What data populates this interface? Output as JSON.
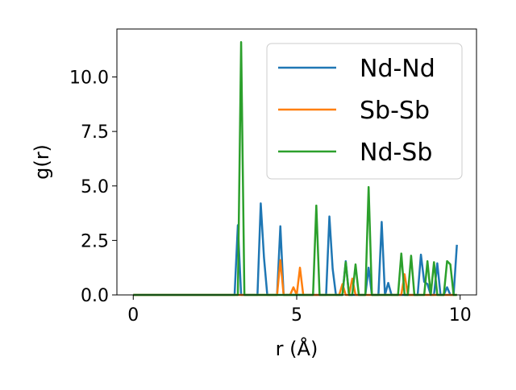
{
  "chart_data": {
    "type": "line",
    "xlabel": "r (Å)",
    "ylabel": "g(r)",
    "xlim": [
      -0.5,
      10.5
    ],
    "ylim": [
      0,
      12.2
    ],
    "xticks": [
      0,
      5,
      10
    ],
    "xtick_labels": [
      "0",
      "5",
      "10"
    ],
    "yticks": [
      0,
      2.5,
      5,
      7.5,
      10
    ],
    "ytick_labels": [
      "0.0",
      "2.5",
      "5.0",
      "7.5",
      "10.0"
    ],
    "grid": false,
    "legend_position": "top-right",
    "x": [
      0.0,
      0.1,
      0.2,
      0.3,
      0.4,
      0.5,
      0.6,
      0.7,
      0.8,
      0.9,
      1.0,
      1.1,
      1.2,
      1.3,
      1.4,
      1.5,
      1.6,
      1.7,
      1.8,
      1.9,
      2.0,
      2.1,
      2.2,
      2.3,
      2.4,
      2.5,
      2.6,
      2.7,
      2.8,
      2.9,
      3.0,
      3.1,
      3.2,
      3.3,
      3.4,
      3.5,
      3.6,
      3.7,
      3.8,
      3.9,
      4.0,
      4.1,
      4.2,
      4.3,
      4.4,
      4.5,
      4.6,
      4.7,
      4.8,
      4.9,
      5.0,
      5.1,
      5.2,
      5.3,
      5.4,
      5.5,
      5.6,
      5.7,
      5.8,
      5.9,
      6.0,
      6.1,
      6.2,
      6.3,
      6.4,
      6.5,
      6.6,
      6.7,
      6.8,
      6.9,
      7.0,
      7.1,
      7.2,
      7.3,
      7.4,
      7.5,
      7.6,
      7.7,
      7.8,
      7.9,
      8.0,
      8.1,
      8.2,
      8.3,
      8.4,
      8.5,
      8.6,
      8.7,
      8.8,
      8.9,
      9.0,
      9.1,
      9.2,
      9.3,
      9.4,
      9.5,
      9.6,
      9.7,
      9.8,
      9.9
    ],
    "series": [
      {
        "name": "Nd-Nd",
        "color": "#1f77b4",
        "values": [
          0,
          0,
          0,
          0,
          0,
          0,
          0,
          0,
          0,
          0,
          0,
          0,
          0,
          0,
          0,
          0,
          0,
          0,
          0,
          0,
          0,
          0,
          0,
          0,
          0,
          0,
          0,
          0,
          0,
          0,
          0,
          0,
          3.2,
          0,
          0,
          0,
          0,
          0,
          0,
          4.2,
          1.7,
          0,
          0,
          0,
          0,
          3.15,
          0,
          0,
          0,
          0,
          0,
          0,
          0,
          0,
          0,
          0,
          0,
          0,
          0,
          0,
          3.6,
          1.2,
          0,
          0,
          0,
          1.55,
          0,
          0,
          0,
          0,
          0,
          0,
          1.25,
          0,
          0,
          0,
          3.35,
          0,
          0.55,
          0,
          0,
          0,
          0,
          0,
          0,
          0,
          0,
          0,
          1.85,
          0.6,
          0.5,
          0,
          0,
          1.45,
          0,
          0,
          0.35,
          0,
          0,
          2.3
        ]
      },
      {
        "name": "Sb-Sb",
        "color": "#ff7f0e",
        "values": [
          0,
          0,
          0,
          0,
          0,
          0,
          0,
          0,
          0,
          0,
          0,
          0,
          0,
          0,
          0,
          0,
          0,
          0,
          0,
          0,
          0,
          0,
          0,
          0,
          0,
          0,
          0,
          0,
          0,
          0,
          0,
          0,
          0,
          0,
          0,
          0,
          0,
          0,
          0,
          0,
          0,
          0,
          0,
          0,
          0,
          1.6,
          0,
          0,
          0,
          0.35,
          0,
          1.25,
          0,
          0,
          0,
          0,
          0,
          0,
          0,
          0,
          0,
          0,
          0,
          0,
          0.5,
          0,
          0,
          0.75,
          0,
          0,
          0,
          0,
          0,
          0,
          0,
          0,
          0,
          0,
          0,
          0,
          0,
          0,
          0,
          0.95,
          0,
          0,
          0,
          0,
          0,
          0,
          0,
          0,
          0,
          0,
          0,
          0,
          0,
          0,
          0,
          0
        ]
      },
      {
        "name": "Nd-Sb",
        "color": "#2ca02c",
        "values": [
          0,
          0,
          0,
          0,
          0,
          0,
          0,
          0,
          0,
          0,
          0,
          0,
          0,
          0,
          0,
          0,
          0,
          0,
          0,
          0,
          0,
          0,
          0,
          0,
          0,
          0,
          0,
          0,
          0,
          0,
          0,
          0,
          0,
          11.6,
          0,
          0,
          0,
          0,
          0,
          0,
          0,
          0,
          0,
          0,
          0,
          0,
          0,
          0,
          0,
          0,
          0,
          0,
          0,
          0,
          0,
          0,
          4.1,
          0,
          0,
          0,
          0,
          0,
          0,
          0,
          0,
          1.5,
          0,
          0,
          1.4,
          0,
          0,
          0,
          4.95,
          0,
          0,
          0,
          0,
          0,
          0,
          0,
          0,
          0,
          1.9,
          0,
          0,
          1.8,
          0,
          0,
          0,
          0,
          1.55,
          0,
          1.5,
          0,
          0,
          0,
          1.55,
          1.4,
          0,
          0
        ]
      }
    ]
  }
}
